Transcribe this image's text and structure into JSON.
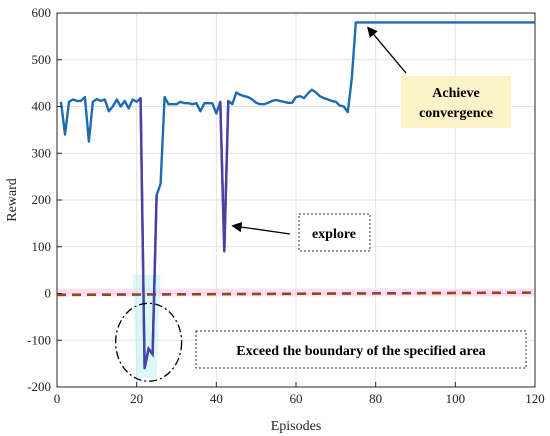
{
  "chart_data": {
    "type": "line",
    "title": "",
    "xlabel": "Episodes",
    "ylabel": "Reward",
    "xlim": [
      0,
      120
    ],
    "ylim": [
      -200,
      600
    ],
    "xticks": [
      0,
      20,
      40,
      60,
      80,
      100,
      120
    ],
    "yticks": [
      -200,
      -100,
      0,
      100,
      200,
      300,
      400,
      500,
      600
    ],
    "grid": true,
    "series": [
      {
        "name": "",
        "color": "#1f6bb0",
        "x": [
          1,
          2,
          3,
          4,
          5,
          6,
          7,
          8,
          9,
          10,
          11,
          12,
          13,
          14,
          15,
          16,
          17,
          18,
          19,
          20,
          21,
          22,
          23,
          24,
          25,
          26,
          27,
          28,
          29,
          30,
          31,
          32,
          33,
          34,
          35,
          36,
          37,
          38,
          39,
          40,
          41,
          42,
          43,
          44,
          45,
          46,
          47,
          48,
          49,
          50,
          51,
          52,
          53,
          54,
          55,
          56,
          57,
          58,
          59,
          60,
          61,
          62,
          63,
          64,
          65,
          66,
          67,
          68,
          69,
          70,
          71,
          72,
          73,
          74,
          75,
          76,
          77,
          78,
          79,
          80,
          81,
          82,
          83,
          84,
          85,
          86,
          87,
          88,
          89,
          90,
          91,
          92,
          93,
          94,
          95,
          96,
          97,
          98,
          99,
          100,
          101,
          102,
          103,
          104,
          105,
          106,
          107,
          108,
          109,
          110,
          111,
          112,
          113,
          114,
          115,
          116,
          117,
          118,
          119,
          120
        ],
        "y": [
          410,
          340,
          410,
          415,
          412,
          412,
          420,
          325,
          410,
          416,
          412,
          415,
          390,
          400,
          415,
          400,
          412,
          396,
          415,
          410,
          418,
          -160,
          -118,
          -130,
          210,
          235,
          420,
          405,
          405,
          405,
          410,
          407,
          407,
          405,
          407,
          390,
          407,
          407,
          407,
          385,
          410,
          90,
          412,
          405,
          430,
          425,
          422,
          420,
          415,
          408,
          405,
          405,
          408,
          412,
          414,
          412,
          410,
          408,
          408,
          420,
          422,
          418,
          428,
          436,
          430,
          422,
          418,
          415,
          412,
          410,
          402,
          400,
          388,
          460,
          580,
          580,
          580,
          580,
          580,
          580,
          580,
          580,
          580,
          580,
          580,
          580,
          580,
          580,
          580,
          580,
          580,
          580,
          580,
          580,
          580,
          580,
          580,
          580,
          580,
          580,
          580,
          580,
          580,
          580,
          580,
          580,
          580,
          580,
          580,
          580,
          580,
          580,
          580,
          580,
          580,
          580,
          580,
          580,
          580,
          580
        ]
      },
      {
        "name": "",
        "color": "#8b4a1e",
        "style": "dashed",
        "x": [
          0,
          120
        ],
        "y": [
          -3,
          2
        ]
      }
    ],
    "annotations": [
      {
        "text_lines": [
          "Achieve",
          "convergence"
        ],
        "x": 76,
        "y": 580,
        "box": "yellow"
      },
      {
        "text_lines": [
          "explore"
        ],
        "x": 42,
        "y": 90,
        "box": "dotted"
      },
      {
        "text_lines": [
          "Exceed the boundary of the specified area"
        ],
        "x": 23,
        "y": -100,
        "box": "dotted"
      }
    ]
  }
}
